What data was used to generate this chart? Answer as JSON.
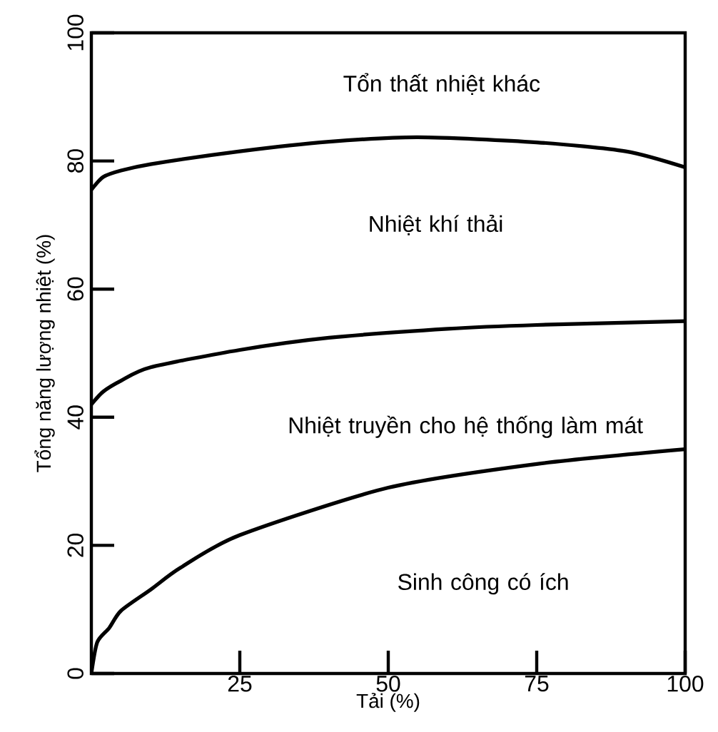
{
  "chart_data": {
    "type": "line",
    "xlabel": "Tải (%)",
    "ylabel": "Tổng năng lượng nhiệt (%)",
    "xlim": [
      0,
      100
    ],
    "ylim": [
      0,
      100
    ],
    "xticks": [
      25,
      50,
      75,
      100
    ],
    "yticks": [
      0,
      20,
      40,
      60,
      80,
      100
    ],
    "marker": "none",
    "line_style": "solid",
    "series": [
      {
        "color": "#000000",
        "x": [
          0,
          1,
          3,
          5,
          10,
          15,
          25,
          50,
          75,
          100
        ],
        "values": [
          0,
          4.9,
          7.1,
          9.8,
          13.1,
          16.5,
          21.6,
          29.0,
          32.7,
          35.0
        ]
      },
      {
        "color": "#000000",
        "x": [
          0,
          2,
          5,
          10,
          25,
          40,
          60,
          75,
          100
        ],
        "values": [
          42,
          44,
          45.7,
          47.8,
          50.5,
          52.4,
          53.8,
          54.4,
          55
        ]
      },
      {
        "color": "#000000",
        "x": [
          0,
          2,
          5,
          10,
          25,
          40,
          55,
          75,
          90,
          100
        ],
        "values": [
          75.5,
          77.5,
          78.5,
          79.5,
          81.5,
          83,
          83.7,
          82.9,
          81.5,
          79
        ]
      }
    ],
    "annotations": [
      "Tổn thất nhiệt khác",
      "Nhiệt khí thải",
      "Nhiệt truyền cho hệ thống làm mát",
      "Sinh công có ích"
    ]
  }
}
